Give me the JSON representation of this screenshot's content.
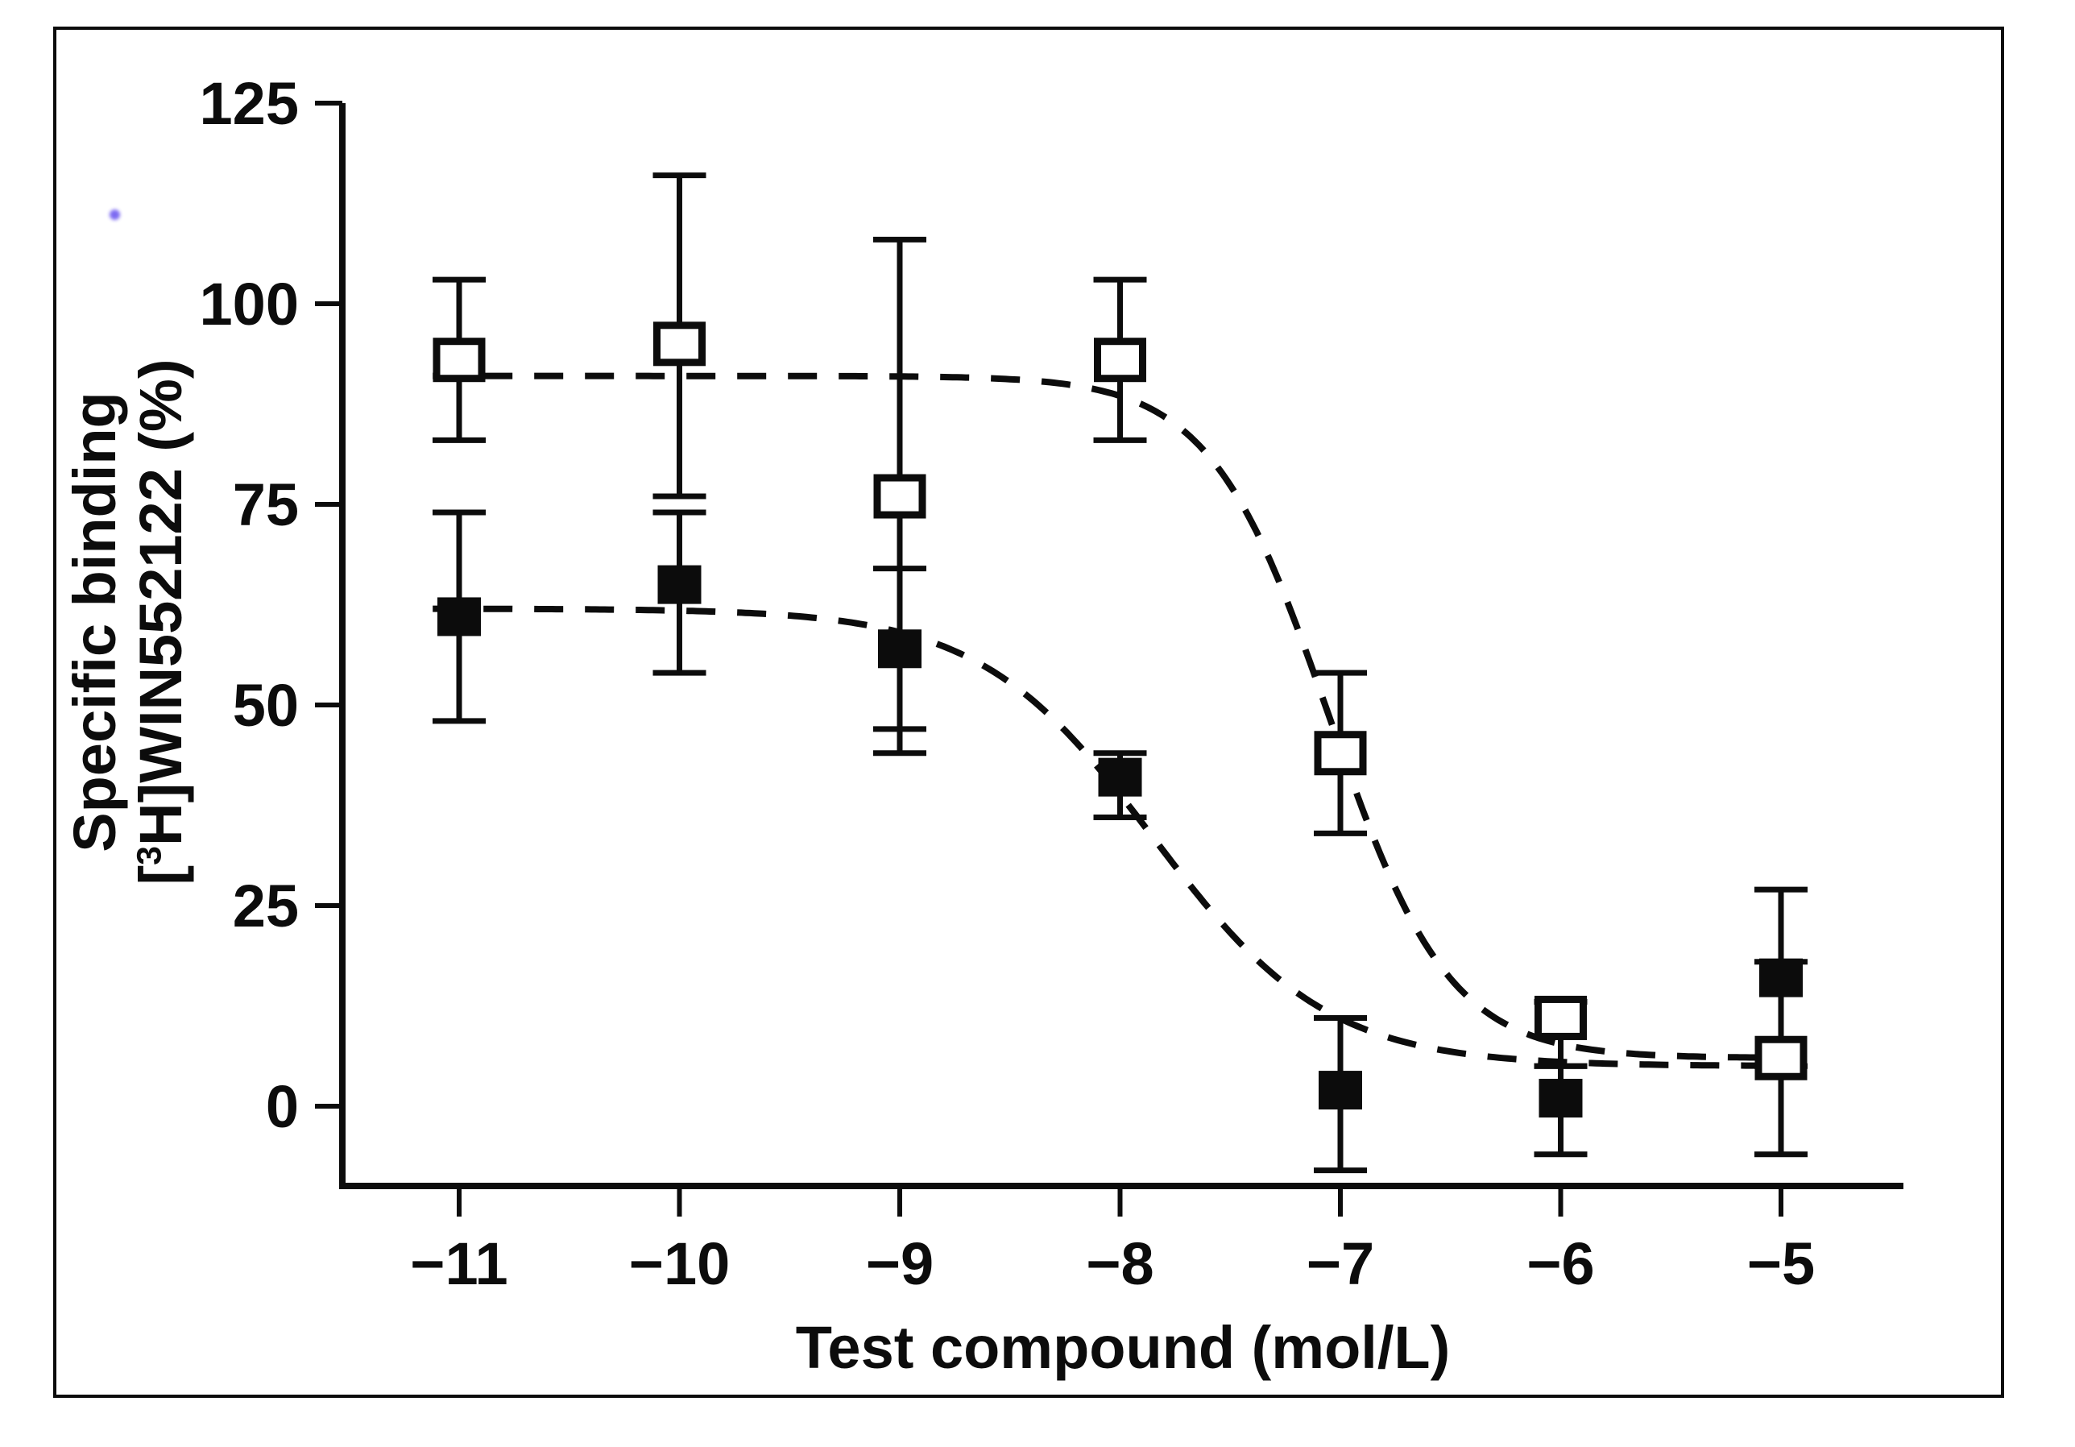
{
  "figure": {
    "background": "#ffffff",
    "frame_color": "#0c0c0c",
    "ink_color": "#0c0c0c",
    "artifact_color": "#6f5cf0"
  },
  "chart_data": {
    "type": "scatter",
    "title": "",
    "xlabel": "Test compound (mol/L)",
    "ylabel_line1": "Specific binding",
    "ylabel_line2": {
      "pre": "[",
      "sup": "3",
      "post": "H]WIN552122 (%)"
    },
    "xlim": [
      -11.53,
      -4.44
    ],
    "ylim": [
      -10,
      125
    ],
    "grid": false,
    "legend": "none",
    "x_ticks": [
      {
        "value": -11,
        "label": "−11"
      },
      {
        "value": -10,
        "label": "−10"
      },
      {
        "value": -9,
        "label": "−9"
      },
      {
        "value": -8,
        "label": "−8"
      },
      {
        "value": -7,
        "label": "−7"
      },
      {
        "value": -6,
        "label": "−6"
      },
      {
        "value": -5,
        "label": "−5"
      }
    ],
    "y_ticks": [
      {
        "value": 0,
        "label": "0"
      },
      {
        "value": 25,
        "label": "25"
      },
      {
        "value": 50,
        "label": "50"
      },
      {
        "value": 75,
        "label": "75"
      },
      {
        "value": 100,
        "label": "100"
      },
      {
        "value": 125,
        "label": "125"
      }
    ],
    "series": [
      {
        "name": "open-squares",
        "marker": "open-square",
        "line_style": "dashed",
        "points": [
          {
            "x": -11,
            "y": 93,
            "err_up": 10,
            "err_down": 10
          },
          {
            "x": -10,
            "y": 95,
            "err_up": 21,
            "err_down": 19
          },
          {
            "x": -9,
            "y": 76,
            "err_up": 32,
            "err_down": 32
          },
          {
            "x": -8,
            "y": 93,
            "err_up": 10,
            "err_down": 10
          },
          {
            "x": -7,
            "y": 44,
            "err_up": 10,
            "err_down": 10
          },
          {
            "x": -6,
            "y": 11,
            "err_up": 2,
            "err_down": 6
          },
          {
            "x": -5,
            "y": 6,
            "err_up": 12,
            "err_down": 12
          }
        ],
        "fit_curve": {
          "model": "4PL",
          "top": 91,
          "bottom": 6,
          "log_ic50": -7.05,
          "hill": 1.6
        }
      },
      {
        "name": "filled-squares",
        "marker": "filled-square",
        "line_style": "dashed",
        "points": [
          {
            "x": -11,
            "y": 61,
            "err_up": 13,
            "err_down": 13
          },
          {
            "x": -10,
            "y": 65,
            "err_up": 9,
            "err_down": 11
          },
          {
            "x": -9,
            "y": 57,
            "err_up": 10,
            "err_down": 10
          },
          {
            "x": -8,
            "y": 41,
            "err_up": 3,
            "err_down": 5
          },
          {
            "x": -7,
            "y": 2,
            "err_up": 9,
            "err_down": 10
          },
          {
            "x": -6,
            "y": 1,
            "err_up": 4,
            "err_down": 7
          },
          {
            "x": -5,
            "y": 16,
            "err_up": 11,
            "err_down": 11
          }
        ],
        "fit_curve": {
          "model": "4PL",
          "top": 62,
          "bottom": 5,
          "log_ic50": -7.85,
          "hill": 1.1
        }
      }
    ]
  }
}
